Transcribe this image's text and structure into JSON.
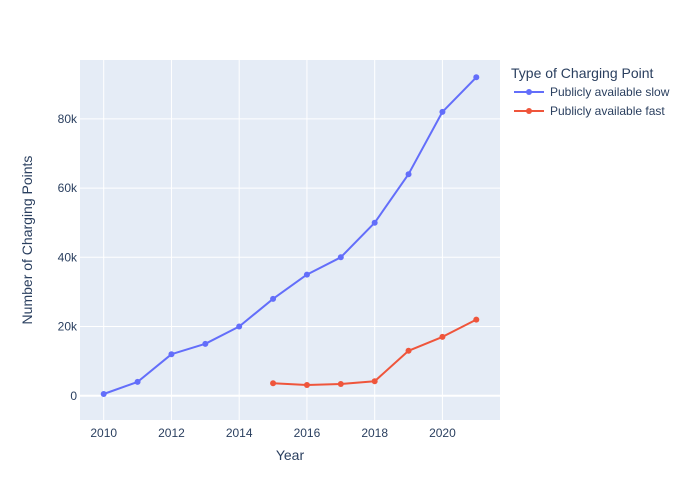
{
  "colors": {
    "plot_bg": "#e5ecf6",
    "grid": "#ffffff",
    "text": "#2a3f5f"
  },
  "chart_data": {
    "type": "line",
    "title": "",
    "xlabel": "Year",
    "ylabel": "Number of Charging Points",
    "xlim": [
      2009.3,
      2021.7
    ],
    "ylim": [
      -7000,
      97000
    ],
    "x_ticks": [
      2010,
      2012,
      2014,
      2016,
      2018,
      2020
    ],
    "x_tick_labels": [
      "2010",
      "2012",
      "2014",
      "2016",
      "2018",
      "2020"
    ],
    "y_ticks": [
      0,
      20000,
      40000,
      60000,
      80000
    ],
    "y_tick_labels": [
      "0",
      "20k",
      "40k",
      "60k",
      "80k"
    ],
    "grid": true,
    "legend": {
      "title": "Type of Charging Point",
      "placement": "right"
    },
    "series": [
      {
        "name": "Publicly available slow",
        "color": "#636efa",
        "x": [
          2010,
          2011,
          2012,
          2013,
          2014,
          2015,
          2016,
          2017,
          2018,
          2019,
          2020,
          2021
        ],
        "y": [
          500,
          4000,
          12000,
          15000,
          20000,
          28000,
          35000,
          40000,
          50000,
          64000,
          82000,
          92000
        ]
      },
      {
        "name": "Publicly available fast",
        "color": "#ef553b",
        "x": [
          2015,
          2016,
          2017,
          2018,
          2019,
          2020,
          2021
        ],
        "y": [
          3600,
          3100,
          3400,
          4200,
          13000,
          17000,
          22000
        ]
      }
    ]
  }
}
